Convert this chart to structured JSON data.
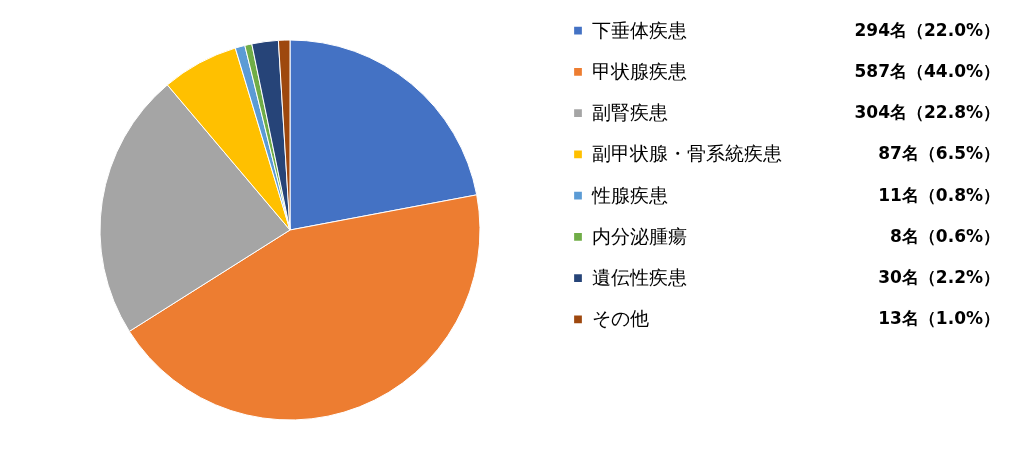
{
  "chart_data": {
    "type": "pie",
    "categories": [
      "下垂体疾患",
      "甲状腺疾患",
      "副腎疾患",
      "副甲状腺・骨系統疾患",
      "性腺疾患",
      "内分泌腫瘍",
      "遺伝性疾患",
      "その他"
    ],
    "values": [
      294,
      587,
      304,
      87,
      11,
      8,
      30,
      13
    ],
    "value_labels": [
      "294名（22.0%）",
      "587名（44.0%）",
      "304名（22.8%）",
      "87名（6.5%）",
      "11名（0.8%）",
      "8名（0.6%）",
      "30名（2.2%）",
      "13名（1.0%）"
    ],
    "colors": [
      "#4472c4",
      "#ed7d31",
      "#a5a5a5",
      "#ffc000",
      "#5b9bd5",
      "#70ad47",
      "#264478",
      "#9e480e"
    ],
    "legend": "right"
  }
}
